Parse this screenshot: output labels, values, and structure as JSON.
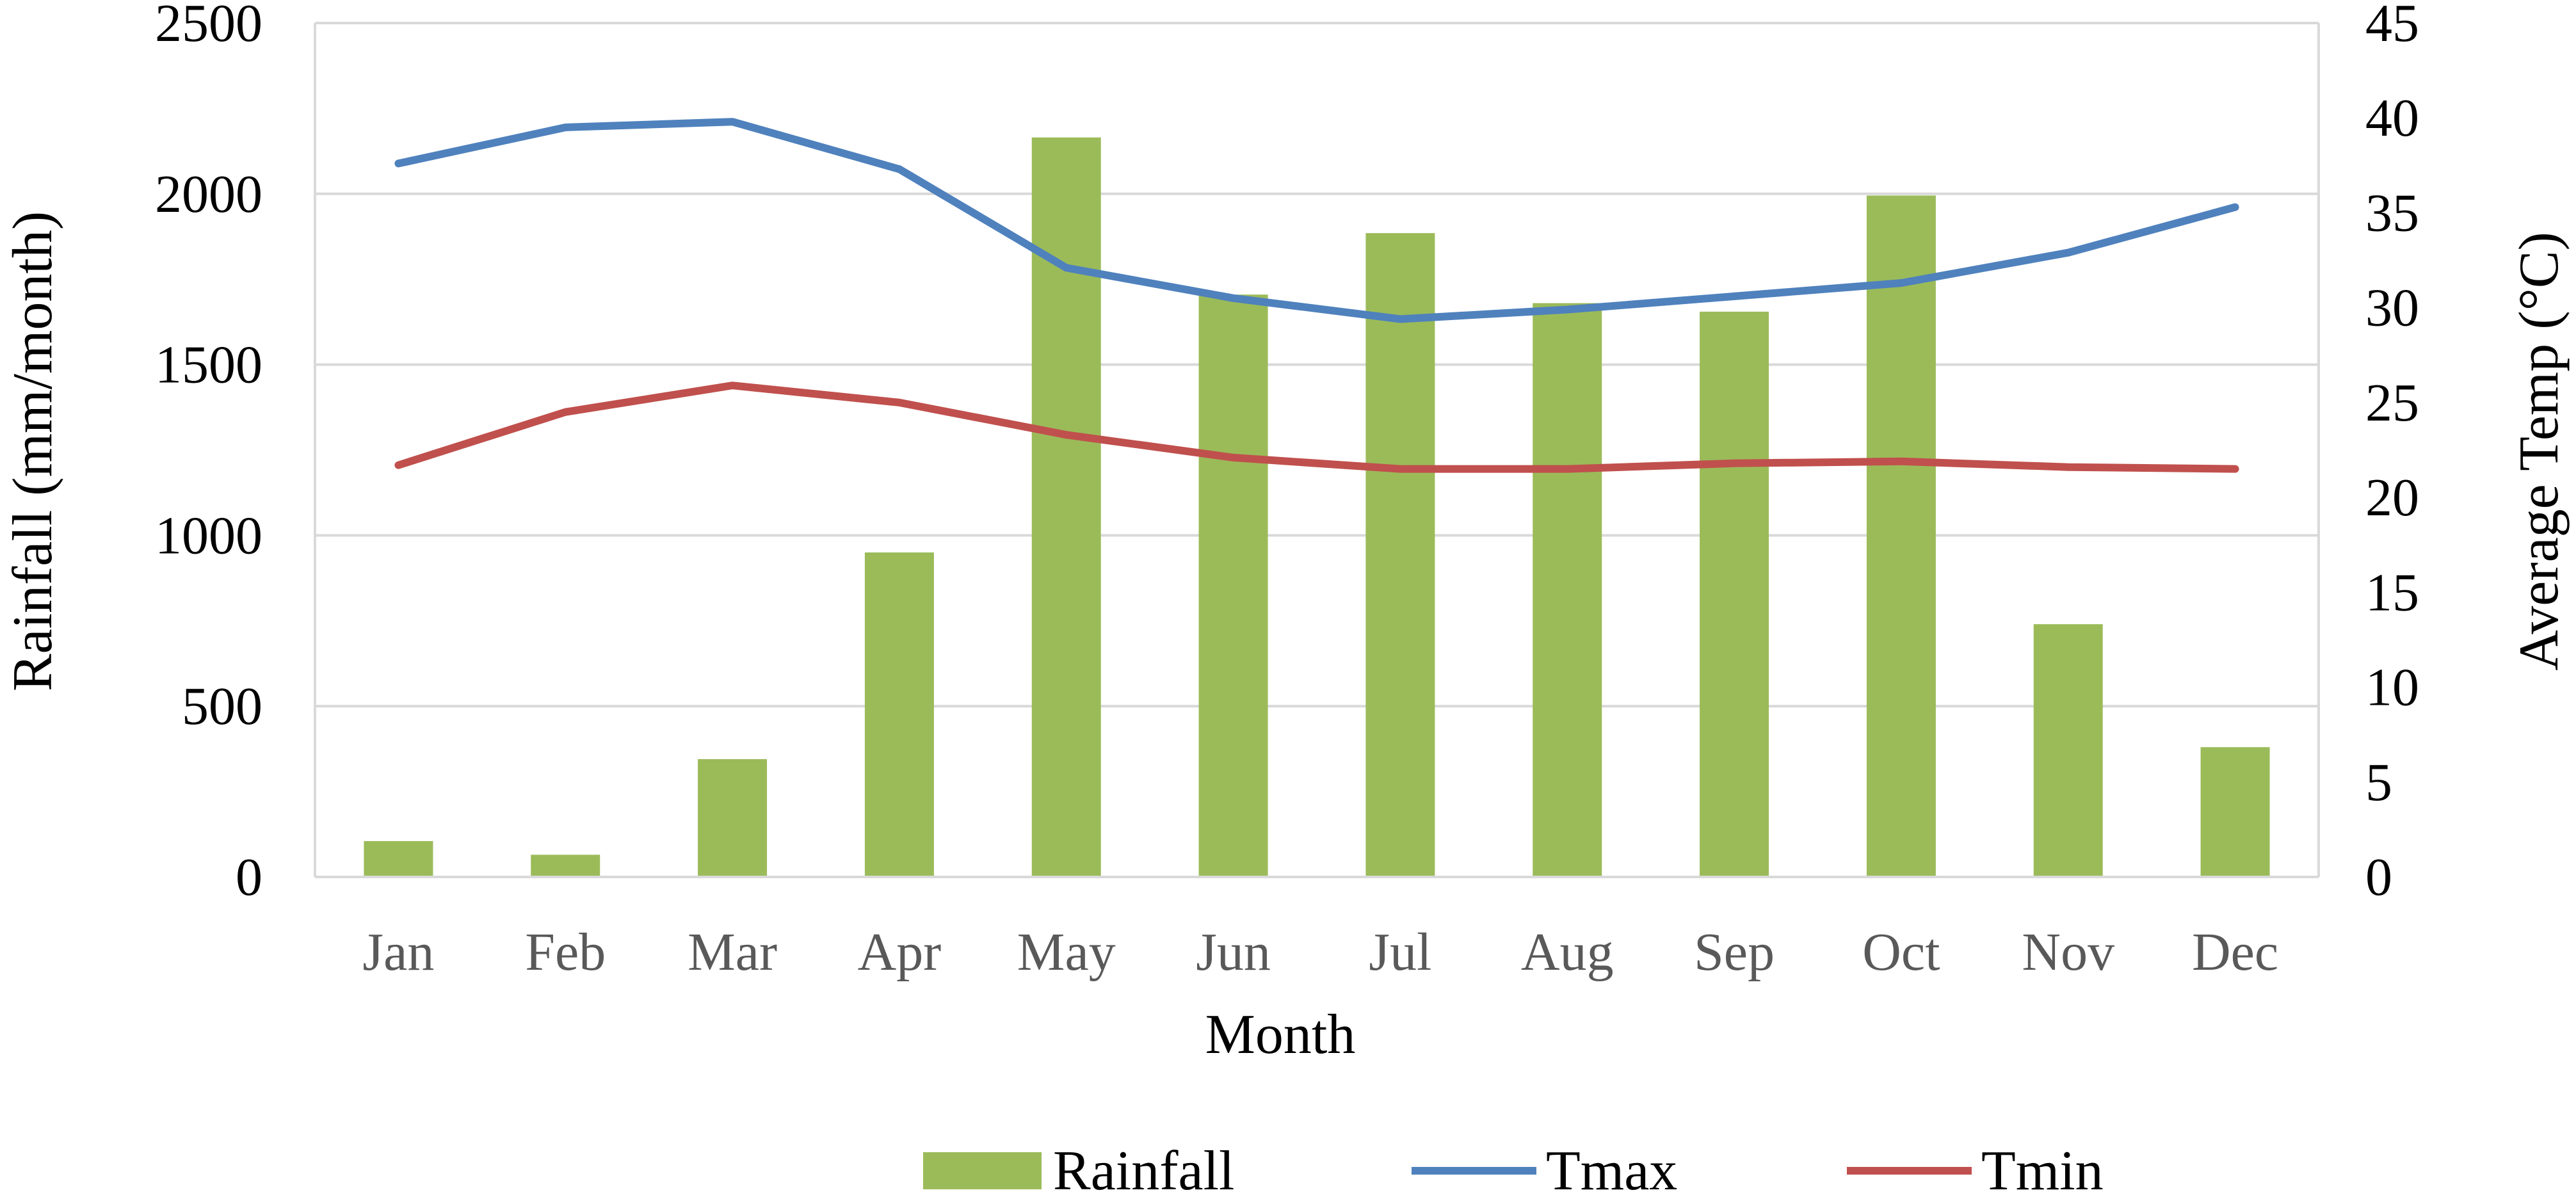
{
  "chart_data": {
    "type": "bar",
    "categories": [
      "Jan",
      "Feb",
      "Mar",
      "Apr",
      "May",
      "Jun",
      "Jul",
      "Aug",
      "Sep",
      "Oct",
      "Nov",
      "Dec"
    ],
    "xlabel": "Month",
    "ylabel": "Rainfall (mm/month)",
    "y2label": "Average Temp (°C)",
    "ylim": [
      0,
      2500
    ],
    "y2lim": [
      0,
      45
    ],
    "yticks": [
      "0",
      "500",
      "1000",
      "1500",
      "2000",
      "2500"
    ],
    "y2ticks": [
      "0",
      "5",
      "10",
      "15",
      "20",
      "25",
      "30",
      "35",
      "40",
      "45"
    ],
    "grid": "horizontal",
    "legend_position": "bottom",
    "series": [
      {
        "name": "Rainfall",
        "type": "bar",
        "axis": "left",
        "color": "#9BBB59",
        "values": [
          105,
          65,
          345,
          950,
          2165,
          1705,
          1885,
          1680,
          1655,
          1995,
          740,
          380
        ]
      },
      {
        "name": "Tmax",
        "type": "line",
        "axis": "right",
        "color": "#4F81BD",
        "values": [
          37.6,
          39.5,
          39.8,
          37.3,
          32.1,
          30.5,
          29.4,
          29.9,
          30.6,
          31.3,
          32.9,
          35.3
        ]
      },
      {
        "name": "Tmin",
        "type": "line",
        "axis": "right",
        "color": "#C0504D",
        "values": [
          21.7,
          24.5,
          25.9,
          25.0,
          23.3,
          22.1,
          21.5,
          21.5,
          21.8,
          21.9,
          21.6,
          21.5
        ]
      }
    ]
  }
}
